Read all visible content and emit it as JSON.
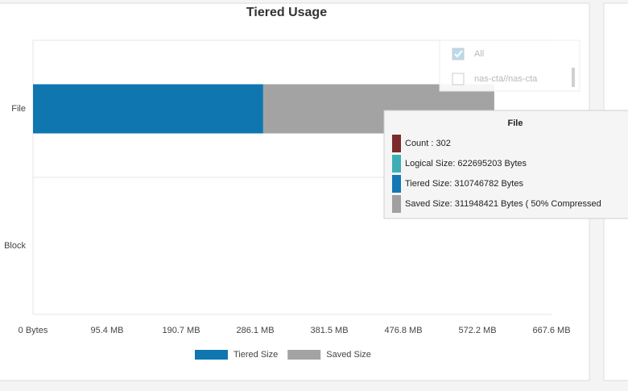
{
  "chart_data": {
    "type": "bar",
    "orientation": "horizontal",
    "stacked": true,
    "title": "Tiered Usage",
    "categories": [
      "File",
      "Block"
    ],
    "series": [
      {
        "name": "Tiered Size",
        "color": "#0f76b0",
        "values": [
          310746782,
          0
        ]
      },
      {
        "name": "Saved Size",
        "color": "#a3a3a3",
        "values": [
          311948421,
          0
        ]
      }
    ],
    "xlim": [
      0,
      700000000
    ],
    "xticks": [
      {
        "value": 0,
        "label": "0 Bytes"
      },
      {
        "value": 100000000,
        "label": "95.4 MB"
      },
      {
        "value": 200000000,
        "label": "190.7 MB"
      },
      {
        "value": 300000000,
        "label": "286.1 MB"
      },
      {
        "value": 400000000,
        "label": "381.5 MB"
      },
      {
        "value": 500000000,
        "label": "476.8 MB"
      },
      {
        "value": 600000000,
        "label": "572.2 MB"
      },
      {
        "value": 700000000,
        "label": "667.6 MB"
      }
    ],
    "grid": false,
    "legend": "bottom",
    "filter": [
      {
        "label": "All",
        "checked": true
      },
      {
        "label": "nas-cta//nas-cta",
        "checked": false
      }
    ],
    "tooltip": {
      "title": "File",
      "items": [
        {
          "text": "Count : 302",
          "color": "#7b2b2b"
        },
        {
          "text": "Logical Size: 622695203 Bytes",
          "color": "#3eaeb5"
        },
        {
          "text": "Tiered Size: 310746782 Bytes",
          "color": "#1478b4"
        },
        {
          "text": "Saved Size: 311948421 Bytes ( 50% Compressed",
          "color": "#a0a0a0"
        }
      ]
    }
  }
}
